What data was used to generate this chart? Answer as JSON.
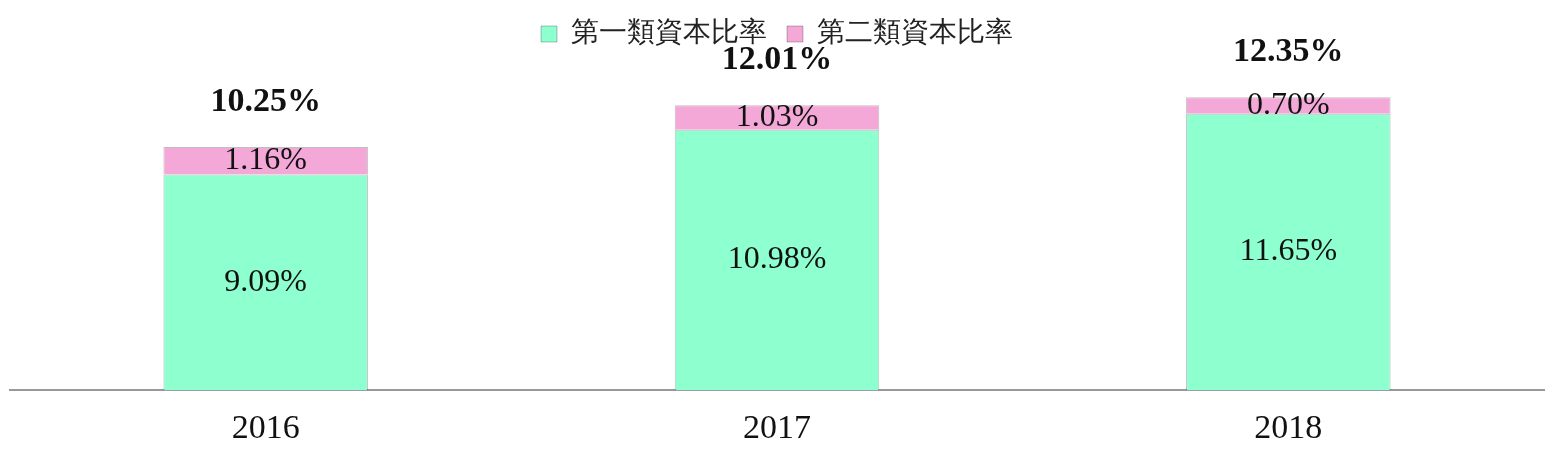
{
  "chart_data": {
    "type": "bar",
    "stacked": true,
    "legend": "top",
    "grid": false,
    "categories": [
      "2016",
      "2017",
      "2018"
    ],
    "series": [
      {
        "name": "第一類資本比率",
        "color": "#8effcf",
        "values": [
          9.09,
          10.98,
          11.65
        ],
        "value_labels": [
          "9.09%",
          "10.98%",
          "11.65%"
        ]
      },
      {
        "name": "第二類資本比率",
        "color": "#f4a8d8",
        "values": [
          1.16,
          1.03,
          0.7
        ],
        "value_labels": [
          "1.16%",
          "1.03%",
          "0.70%"
        ]
      }
    ],
    "totals": [
      "10.25%",
      "12.01%",
      "12.35%"
    ]
  }
}
